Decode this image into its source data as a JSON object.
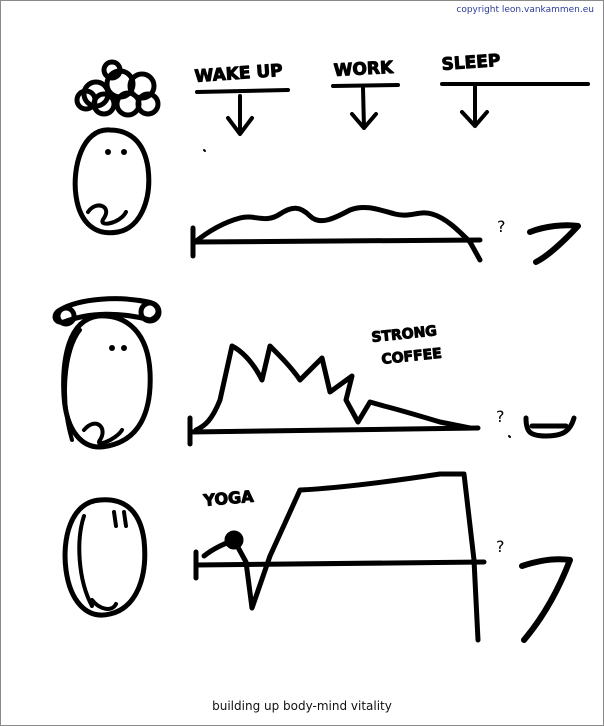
{
  "copyright": "copyright leon.vankammen.eu",
  "caption": "building up body-mind vitality",
  "labels": {
    "wake_up": "WAKE UP",
    "work": "WORK",
    "sleep": "SLEEP",
    "strong_coffee_line1": "STRONG",
    "strong_coffee_line2": "COFFEE",
    "yoga": "YOGA",
    "question_mark": "?"
  },
  "colors": {
    "ink": "#000000",
    "copyright": "#2b3a9a",
    "border": "#8a8a8a"
  }
}
